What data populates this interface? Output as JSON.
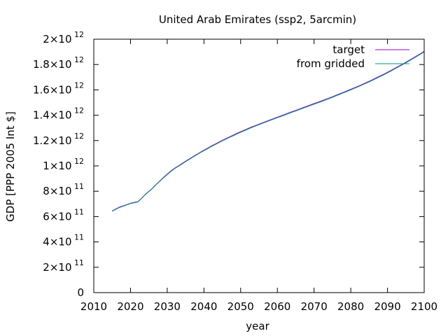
{
  "chart_data": {
    "type": "line",
    "title": "United Arab Emirates (ssp2, 5arcmin)",
    "xlabel": "year",
    "ylabel": "GDP [PPP 2005 Int $]",
    "xlim": [
      2010,
      2100
    ],
    "ylim": [
      0,
      2000000000000
    ],
    "x_ticks": [
      "2010",
      "2020",
      "2030",
      "2040",
      "2050",
      "2060",
      "2070",
      "2080",
      "2090",
      "2100"
    ],
    "y_ticks": [
      {
        "value": 0,
        "mantissa": "0",
        "exp": ""
      },
      {
        "value": 200000000000,
        "mantissa": "2×10",
        "exp": "11"
      },
      {
        "value": 400000000000,
        "mantissa": "4×10",
        "exp": "11"
      },
      {
        "value": 600000000000,
        "mantissa": "6×10",
        "exp": "11"
      },
      {
        "value": 800000000000,
        "mantissa": "8×10",
        "exp": "11"
      },
      {
        "value": 1000000000000,
        "mantissa": "1×10",
        "exp": "12"
      },
      {
        "value": 1200000000000,
        "mantissa": "1.2×10",
        "exp": "12"
      },
      {
        "value": 1400000000000,
        "mantissa": "1.4×10",
        "exp": "12"
      },
      {
        "value": 1600000000000,
        "mantissa": "1.6×10",
        "exp": "12"
      },
      {
        "value": 1800000000000,
        "mantissa": "1.8×10",
        "exp": "12"
      },
      {
        "value": 2000000000000,
        "mantissa": "2×10",
        "exp": "12"
      }
    ],
    "grid": false,
    "legend_position": "top-right",
    "series": [
      {
        "name": "target",
        "color": "#9400d3",
        "x": [
          2015,
          2016,
          2017,
          2018,
          2019,
          2020,
          2021,
          2022,
          2023,
          2024,
          2025,
          2026,
          2027,
          2028,
          2029,
          2030,
          2031,
          2032,
          2033,
          2034,
          2035,
          2036,
          2037,
          2038,
          2039,
          2040,
          2041,
          2042,
          2043,
          2044,
          2045,
          2046,
          2047,
          2048,
          2049,
          2050,
          2051,
          2052,
          2053,
          2054,
          2055,
          2056,
          2057,
          2058,
          2059,
          2060,
          2061,
          2062,
          2063,
          2064,
          2065,
          2066,
          2067,
          2068,
          2069,
          2070,
          2071,
          2072,
          2073,
          2074,
          2075,
          2076,
          2077,
          2078,
          2079,
          2080,
          2081,
          2082,
          2083,
          2084,
          2085,
          2086,
          2087,
          2088,
          2089,
          2090,
          2091,
          2092,
          2093,
          2094,
          2095,
          2096,
          2097,
          2098,
          2099,
          2100
        ],
        "values": [
          645000000000,
          660000000000,
          675000000000,
          685000000000,
          695000000000,
          705000000000,
          712000000000,
          718000000000,
          745000000000,
          775000000000,
          800000000000,
          825000000000,
          855000000000,
          882000000000,
          910000000000,
          935000000000,
          960000000000,
          982000000000,
          1000000000000,
          1018000000000,
          1037000000000,
          1055000000000,
          1073000000000,
          1090000000000,
          1108000000000,
          1125000000000,
          1140000000000,
          1157000000000,
          1172000000000,
          1187000000000,
          1202000000000,
          1216000000000,
          1230000000000,
          1243000000000,
          1257000000000,
          1270000000000,
          1282000000000,
          1295000000000,
          1307000000000,
          1319000000000,
          1330000000000,
          1341000000000,
          1352000000000,
          1363000000000,
          1374000000000,
          1385000000000,
          1395000000000,
          1406000000000,
          1417000000000,
          1428000000000,
          1438000000000,
          1449000000000,
          1460000000000,
          1470000000000,
          1481000000000,
          1492000000000,
          1502000000000,
          1513000000000,
          1524000000000,
          1535000000000,
          1546000000000,
          1558000000000,
          1569000000000,
          1581000000000,
          1593000000000,
          1605000000000,
          1617000000000,
          1629000000000,
          1642000000000,
          1655000000000,
          1668000000000,
          1682000000000,
          1696000000000,
          1710000000000,
          1724000000000,
          1739000000000,
          1754000000000,
          1770000000000,
          1786000000000,
          1802000000000,
          1818000000000,
          1835000000000,
          1852000000000,
          1869000000000,
          1887000000000,
          1905000000000
        ]
      },
      {
        "name": "from gridded",
        "color": "#009e73",
        "x": [
          2015,
          2016,
          2017,
          2018,
          2019,
          2020,
          2021,
          2022,
          2023,
          2024,
          2025,
          2026,
          2027,
          2028,
          2029,
          2030,
          2031,
          2032,
          2033,
          2034,
          2035,
          2036,
          2037,
          2038,
          2039,
          2040,
          2041,
          2042,
          2043,
          2044,
          2045,
          2046,
          2047,
          2048,
          2049,
          2050,
          2051,
          2052,
          2053,
          2054,
          2055,
          2056,
          2057,
          2058,
          2059,
          2060,
          2061,
          2062,
          2063,
          2064,
          2065,
          2066,
          2067,
          2068,
          2069,
          2070,
          2071,
          2072,
          2073,
          2074,
          2075,
          2076,
          2077,
          2078,
          2079,
          2080,
          2081,
          2082,
          2083,
          2084,
          2085,
          2086,
          2087,
          2088,
          2089,
          2090,
          2091,
          2092,
          2093,
          2094,
          2095,
          2096,
          2097,
          2098,
          2099,
          2100
        ],
        "values": [
          642000000000,
          657000000000,
          672000000000,
          682000000000,
          692000000000,
          702000000000,
          709000000000,
          715000000000,
          742000000000,
          772000000000,
          797000000000,
          822000000000,
          852000000000,
          879000000000,
          906000000000,
          931000000000,
          956000000000,
          978000000000,
          996000000000,
          1014000000000,
          1033000000000,
          1051000000000,
          1069000000000,
          1086000000000,
          1104000000000,
          1120000000000,
          1135000000000,
          1152000000000,
          1167000000000,
          1182000000000,
          1197000000000,
          1211000000000,
          1225000000000,
          1238000000000,
          1252000000000,
          1265000000000,
          1277000000000,
          1290000000000,
          1302000000000,
          1314000000000,
          1325000000000,
          1336000000000,
          1347000000000,
          1358000000000,
          1369000000000,
          1380000000000,
          1390000000000,
          1401000000000,
          1412000000000,
          1423000000000,
          1433000000000,
          1444000000000,
          1455000000000,
          1465000000000,
          1476000000000,
          1487000000000,
          1497000000000,
          1508000000000,
          1519000000000,
          1530000000000,
          1541000000000,
          1553000000000,
          1564000000000,
          1576000000000,
          1588000000000,
          1600000000000,
          1612000000000,
          1624000000000,
          1637000000000,
          1650000000000,
          1663000000000,
          1677000000000,
          1691000000000,
          1705000000000,
          1719000000000,
          1734000000000,
          1749000000000,
          1765000000000,
          1781000000000,
          1797000000000,
          1813000000000,
          1830000000000,
          1847000000000,
          1864000000000,
          1882000000000,
          1900000000000
        ]
      }
    ]
  }
}
